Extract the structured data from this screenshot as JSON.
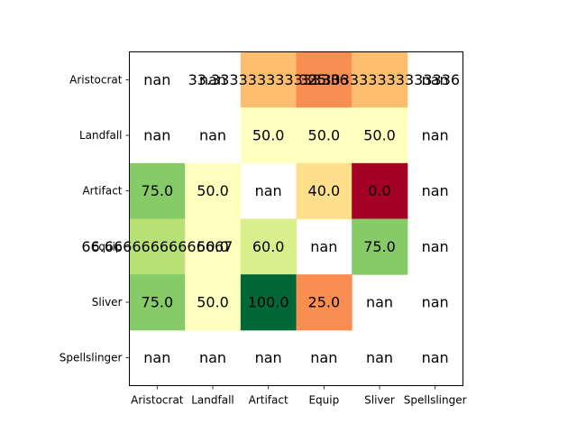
{
  "chart_data": {
    "type": "heatmap",
    "title": "",
    "xlabel": "",
    "ylabel": "",
    "x_categories": [
      "Aristocrat",
      "Landfall",
      "Artifact",
      "Equip",
      "Sliver",
      "Spellslinger"
    ],
    "y_categories": [
      "Aristocrat",
      "Landfall",
      "Artifact",
      "Equip",
      "Sliver",
      "Spellslinger"
    ],
    "values": [
      [
        null,
        null,
        33.333333333333336,
        25.0,
        33.333333333333336,
        null
      ],
      [
        null,
        null,
        50.0,
        50.0,
        50.0,
        null
      ],
      [
        75.0,
        50.0,
        null,
        40.0,
        0.0,
        null
      ],
      [
        66.66666666666667,
        50.0,
        60.0,
        null,
        75.0,
        null
      ],
      [
        75.0,
        50.0,
        100.0,
        25.0,
        null,
        null
      ],
      [
        null,
        null,
        null,
        null,
        null,
        null
      ]
    ],
    "cell_labels": [
      [
        "nan",
        "nan",
        "33.333333333333336 / 25.0",
        "33.333333333333336 / 25.0",
        "33.333333333333336 / 25.0",
        "nan"
      ],
      [
        "nan",
        "nan",
        "50.0",
        "50.0",
        "50.0",
        "nan"
      ],
      [
        "75.0",
        "50.0",
        "nan",
        "40.0",
        "0.0",
        "nan"
      ],
      [
        "66.66666666666667",
        "50.0",
        "60.0",
        "nan",
        "75.0",
        "nan"
      ],
      [
        "75.0",
        "50.0",
        "100.0",
        "25.0",
        "nan",
        "nan"
      ],
      [
        "nan",
        "nan",
        "nan",
        "nan",
        "nan",
        "nan"
      ]
    ],
    "overlapping_labels": {
      "row": 0,
      "texts": [
        "33.333333333333336",
        "25.0",
        "33.333333333333336",
        "25.0"
      ]
    },
    "colormap": "RdYlGn",
    "vmin": 0,
    "vmax": 100,
    "grid": false,
    "colorbar": false
  }
}
